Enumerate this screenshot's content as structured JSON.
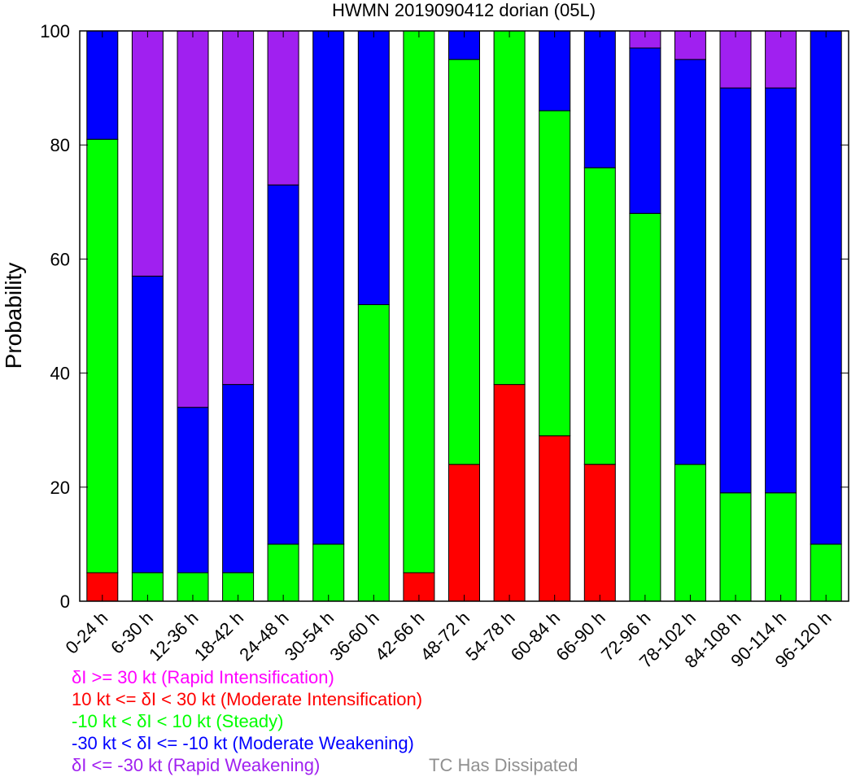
{
  "chart_data": {
    "type": "bar",
    "stacked": true,
    "title": "HWMN 2019090412 dorian (05L)",
    "ylabel": "Probability",
    "xlabel": "",
    "ylim": [
      0,
      100
    ],
    "yticks": [
      0,
      20,
      40,
      60,
      80,
      100
    ],
    "categories": [
      "0-24 h",
      "6-30 h",
      "12-36 h",
      "18-42 h",
      "24-48 h",
      "30-54 h",
      "36-60 h",
      "42-66 h",
      "48-72 h",
      "54-78 h",
      "60-84 h",
      "66-90 h",
      "72-96 h",
      "78-102 h",
      "84-108 h",
      "90-114 h",
      "96-120 h"
    ],
    "series": [
      {
        "name": "Rapid Intensification",
        "key": "ri",
        "color": "#ff00ff",
        "values": [
          0,
          0,
          0,
          0,
          0,
          0,
          0,
          0,
          0,
          0,
          0,
          0,
          0,
          0,
          0,
          0,
          0
        ]
      },
      {
        "name": "Moderate Intensification",
        "key": "mi",
        "color": "#ff0000",
        "values": [
          5,
          0,
          0,
          0,
          0,
          0,
          0,
          5,
          24,
          38,
          29,
          24,
          0,
          0,
          0,
          0,
          0
        ]
      },
      {
        "name": "Steady",
        "key": "st",
        "color": "#00ff00",
        "values": [
          76,
          5,
          5,
          5,
          10,
          10,
          52,
          95,
          71,
          62,
          57,
          52,
          68,
          24,
          19,
          19,
          10
        ]
      },
      {
        "name": "Moderate Weakening",
        "key": "mw",
        "color": "#0000ff",
        "values": [
          19,
          52,
          29,
          33,
          63,
          90,
          48,
          0,
          5,
          0,
          14,
          24,
          29,
          71,
          71,
          71,
          90
        ]
      },
      {
        "name": "Rapid Weakening",
        "key": "rw",
        "color": "#a020f0",
        "values": [
          0,
          43,
          66,
          62,
          27,
          0,
          0,
          0,
          0,
          0,
          0,
          0,
          3,
          5,
          10,
          10,
          0
        ]
      }
    ]
  },
  "legend": [
    {
      "text": "δI >= 30 kt (Rapid Intensification)",
      "color": "#ff00ff"
    },
    {
      "text": "10 kt <= δI < 30 kt (Moderate Intensification)",
      "color": "#ff0000"
    },
    {
      "text": "-10 kt < δI < 10 kt (Steady)",
      "color": "#00ff00"
    },
    {
      "text": "-30 kt < δI <= -10 kt (Moderate Weakening)",
      "color": "#0000ff"
    },
    {
      "text": "δI <= -30 kt (Rapid Weakening)",
      "color": "#a020f0"
    }
  ],
  "dissipated_label": {
    "text": "TC Has Dissipated",
    "color": "#909090"
  }
}
